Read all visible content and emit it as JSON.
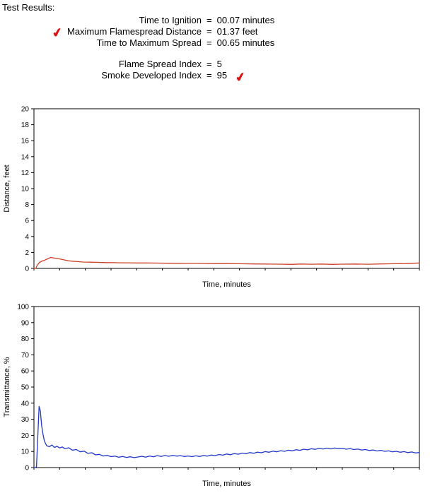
{
  "title": "Test Results:",
  "results": {
    "checkmark": "✔",
    "check_color": "#d81414",
    "rows": [
      {
        "label": "Time to Ignition",
        "eq": "=",
        "value": "00.07 minutes"
      },
      {
        "label": "Maximum Flamespread Distance",
        "eq": "=",
        "value": "01.37 feet"
      },
      {
        "label": "Time to Maximum Spread",
        "eq": "=",
        "value": "00.65 minutes"
      },
      {
        "label": "Flame Spread Index",
        "eq": "=",
        "value": "5"
      },
      {
        "label": "Smoke Developed Index",
        "eq": "=",
        "value": "95"
      }
    ]
  },
  "chart_data": [
    {
      "type": "line",
      "title": "",
      "xlabel": "Time, minutes",
      "ylabel": "Distance, feet",
      "xlim": [
        0,
        15
      ],
      "ylim": [
        0,
        20
      ],
      "ytick": 2,
      "xtick": 1,
      "grid": false,
      "legend": "none",
      "series": [
        {
          "name": "flamespread-distance",
          "color": "#cc4125",
          "points": [
            [
              0,
              0
            ],
            [
              0.07,
              0
            ],
            [
              0.12,
              0.35
            ],
            [
              0.2,
              0.7
            ],
            [
              0.3,
              0.9
            ],
            [
              0.4,
              1.0
            ],
            [
              0.5,
              1.15
            ],
            [
              0.6,
              1.3
            ],
            [
              0.65,
              1.37
            ],
            [
              0.75,
              1.32
            ],
            [
              0.9,
              1.25
            ],
            [
              1.05,
              1.15
            ],
            [
              1.2,
              1.05
            ],
            [
              1.35,
              0.95
            ],
            [
              1.5,
              0.9
            ],
            [
              1.7,
              0.85
            ],
            [
              1.9,
              0.8
            ],
            [
              2.2,
              0.78
            ],
            [
              2.5,
              0.75
            ],
            [
              2.8,
              0.73
            ],
            [
              3.1,
              0.72
            ],
            [
              3.4,
              0.7
            ],
            [
              3.7,
              0.7
            ],
            [
              4.0,
              0.68
            ],
            [
              4.4,
              0.68
            ],
            [
              4.8,
              0.66
            ],
            [
              5.2,
              0.65
            ],
            [
              5.6,
              0.64
            ],
            [
              6.0,
              0.63
            ],
            [
              6.5,
              0.62
            ],
            [
              7.0,
              0.6
            ],
            [
              7.5,
              0.6
            ],
            [
              8.0,
              0.58
            ],
            [
              8.5,
              0.56
            ],
            [
              9.0,
              0.55
            ],
            [
              9.5,
              0.53
            ],
            [
              10.0,
              0.5
            ],
            [
              10.4,
              0.55
            ],
            [
              10.8,
              0.52
            ],
            [
              11.2,
              0.55
            ],
            [
              11.6,
              0.5
            ],
            [
              12.0,
              0.53
            ],
            [
              12.5,
              0.55
            ],
            [
              13.0,
              0.52
            ],
            [
              13.5,
              0.56
            ],
            [
              14.0,
              0.58
            ],
            [
              14.5,
              0.6
            ],
            [
              15.0,
              0.68
            ]
          ]
        }
      ]
    },
    {
      "type": "line",
      "title": "",
      "xlabel": "Time, minutes",
      "ylabel": "Transmittance, %",
      "xlim": [
        0,
        15
      ],
      "ylim": [
        0,
        100
      ],
      "ytick": 10,
      "xtick": 1,
      "grid": false,
      "legend": "none",
      "series": [
        {
          "name": "light-transmittance",
          "color": "#2236c8",
          "points": [
            [
              0,
              0
            ],
            [
              0.05,
              0
            ],
            [
              0.1,
              0.5
            ],
            [
              0.15,
              20
            ],
            [
              0.2,
              38
            ],
            [
              0.25,
              35
            ],
            [
              0.3,
              26
            ],
            [
              0.35,
              21
            ],
            [
              0.4,
              17
            ],
            [
              0.45,
              15
            ],
            [
              0.5,
              13.5
            ],
            [
              0.6,
              13
            ],
            [
              0.7,
              14
            ],
            [
              0.8,
              12.5
            ],
            [
              0.9,
              13.2
            ],
            [
              1.0,
              12.2
            ],
            [
              1.1,
              12.8
            ],
            [
              1.2,
              11.8
            ],
            [
              1.35,
              12.3
            ],
            [
              1.5,
              10.8
            ],
            [
              1.65,
              11.2
            ],
            [
              1.8,
              9.8
            ],
            [
              1.95,
              10.2
            ],
            [
              2.1,
              8.8
            ],
            [
              2.25,
              9.2
            ],
            [
              2.4,
              7.9
            ],
            [
              2.55,
              8.2
            ],
            [
              2.7,
              7.2
            ],
            [
              2.85,
              7.6
            ],
            [
              3.0,
              6.8
            ],
            [
              3.15,
              7.1
            ],
            [
              3.3,
              6.4
            ],
            [
              3.45,
              6.9
            ],
            [
              3.6,
              6.3
            ],
            [
              3.75,
              6.7
            ],
            [
              3.9,
              6.2
            ],
            [
              4.05,
              6.6
            ],
            [
              4.2,
              7.0
            ],
            [
              4.35,
              6.5
            ],
            [
              4.5,
              7.2
            ],
            [
              4.65,
              6.7
            ],
            [
              4.8,
              7.4
            ],
            [
              4.95,
              6.9
            ],
            [
              5.1,
              7.5
            ],
            [
              5.25,
              7.0
            ],
            [
              5.4,
              7.6
            ],
            [
              5.55,
              7.1
            ],
            [
              5.7,
              7.4
            ],
            [
              5.85,
              6.9
            ],
            [
              6.0,
              7.2
            ],
            [
              6.15,
              6.8
            ],
            [
              6.3,
              7.3
            ],
            [
              6.45,
              6.9
            ],
            [
              6.6,
              7.5
            ],
            [
              6.75,
              7.1
            ],
            [
              6.9,
              7.8
            ],
            [
              7.05,
              7.4
            ],
            [
              7.2,
              8.1
            ],
            [
              7.35,
              7.7
            ],
            [
              7.5,
              8.4
            ],
            [
              7.65,
              8.0
            ],
            [
              7.8,
              8.7
            ],
            [
              7.95,
              8.3
            ],
            [
              8.1,
              9.0
            ],
            [
              8.25,
              8.6
            ],
            [
              8.4,
              9.3
            ],
            [
              8.55,
              8.9
            ],
            [
              8.7,
              9.6
            ],
            [
              8.85,
              9.2
            ],
            [
              9.0,
              9.9
            ],
            [
              9.15,
              9.5
            ],
            [
              9.3,
              10.2
            ],
            [
              9.45,
              9.8
            ],
            [
              9.6,
              10.5
            ],
            [
              9.75,
              10.1
            ],
            [
              9.9,
              10.8
            ],
            [
              10.05,
              10.4
            ],
            [
              10.2,
              11.1
            ],
            [
              10.35,
              10.7
            ],
            [
              10.5,
              11.4
            ],
            [
              10.65,
              11.0
            ],
            [
              10.8,
              11.7
            ],
            [
              10.95,
              11.3
            ],
            [
              11.1,
              12.0
            ],
            [
              11.25,
              11.5
            ],
            [
              11.4,
              12.1
            ],
            [
              11.55,
              11.6
            ],
            [
              11.7,
              12.2
            ],
            [
              11.85,
              11.7
            ],
            [
              12.0,
              12.0
            ],
            [
              12.15,
              11.4
            ],
            [
              12.3,
              11.8
            ],
            [
              12.45,
              11.2
            ],
            [
              12.6,
              11.5
            ],
            [
              12.75,
              10.9
            ],
            [
              12.9,
              11.2
            ],
            [
              13.05,
              10.6
            ],
            [
              13.2,
              10.9
            ],
            [
              13.35,
              10.3
            ],
            [
              13.5,
              10.7
            ],
            [
              13.65,
              10.1
            ],
            [
              13.8,
              10.4
            ],
            [
              13.95,
              9.8
            ],
            [
              14.1,
              10.1
            ],
            [
              14.25,
              9.5
            ],
            [
              14.4,
              9.9
            ],
            [
              14.55,
              9.3
            ],
            [
              14.7,
              9.7
            ],
            [
              14.85,
              9.1
            ],
            [
              15.0,
              9.4
            ]
          ]
        }
      ]
    }
  ]
}
